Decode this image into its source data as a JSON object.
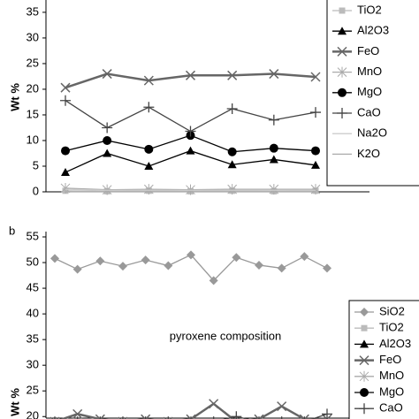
{
  "chart_data": [
    {
      "type": "line",
      "y_label": "Wt %",
      "categories": [
        null,
        null,
        null,
        null,
        null,
        null,
        null
      ],
      "ylim": [
        0,
        37.4
      ],
      "yticks": [
        0,
        5,
        10,
        15,
        20,
        25,
        30,
        35
      ],
      "series": [
        {
          "name": "TiO2",
          "color": "#bbbbbb",
          "marker": "square",
          "values": [
            0.2,
            0.1,
            0.2,
            0.1,
            0.2,
            0.1,
            0.2
          ]
        },
        {
          "name": "Al2O3",
          "color": "#000000",
          "marker": "triangle",
          "values": [
            3.8,
            7.5,
            5,
            8,
            5.3,
            6.3,
            5.2
          ]
        },
        {
          "name": "FeO",
          "color": "#666666",
          "marker": "x",
          "values": [
            20.3,
            23,
            21.7,
            22.7,
            22.7,
            23,
            22.4
          ]
        },
        {
          "name": "MnO",
          "color": "#aaaaaa",
          "marker": "asterisk",
          "values": [
            0.7,
            0.4,
            0.5,
            0.4,
            0.5,
            0.5,
            0.5
          ]
        },
        {
          "name": "MgO",
          "color": "#000000",
          "marker": "circle",
          "values": [
            8,
            10,
            8.3,
            11,
            7.8,
            8.5,
            8
          ]
        },
        {
          "name": "CaO",
          "color": "#444444",
          "marker": "plus",
          "values": [
            17.8,
            12.5,
            16.5,
            11.8,
            16.2,
            14,
            15.5
          ]
        },
        {
          "name": "Na2O",
          "color": "#cccccc",
          "marker": "none",
          "values": [
            0.5,
            0.3,
            0.3,
            0.3,
            0.3,
            0.3,
            0.3
          ]
        },
        {
          "name": "K2O",
          "color": "#aaaaaa",
          "marker": "none",
          "values": [
            0,
            0,
            0,
            0,
            0,
            0,
            0
          ]
        }
      ]
    },
    {
      "type": "line",
      "panel_label": "b",
      "y_label": "Wt %",
      "annotation": "pyroxene composition",
      "categories": [
        null,
        null,
        null,
        null,
        null,
        null,
        null,
        null,
        null,
        null,
        null,
        null,
        null
      ],
      "ylim": [
        19.7,
        55
      ],
      "yticks": [
        20,
        25,
        30,
        35,
        40,
        45,
        50,
        55
      ],
      "series": [
        {
          "name": "SiO2",
          "color": "#999999",
          "marker": "diamond",
          "values": [
            50.8,
            48.7,
            50.3,
            49.3,
            50.5,
            49.4,
            51.5,
            46.5,
            51,
            49.5,
            48.9,
            51.2,
            48.9
          ]
        },
        {
          "name": "TiO2",
          "color": "#bbbbbb",
          "marker": "square",
          "values": [
            null,
            null,
            null,
            null,
            null,
            null,
            null,
            null,
            null,
            null,
            null,
            null,
            null
          ]
        },
        {
          "name": "Al2O3",
          "color": "#000000",
          "marker": "triangle",
          "values": [
            null,
            null,
            null,
            null,
            null,
            null,
            null,
            null,
            null,
            null,
            null,
            null,
            null
          ]
        },
        {
          "name": "FeO",
          "color": "#666666",
          "marker": "x",
          "values": [
            19,
            20.5,
            19.5,
            19,
            19.5,
            19,
            19.5,
            22.5,
            19,
            19.5,
            22,
            19.5,
            19.5
          ]
        },
        {
          "name": "MnO",
          "color": "#aaaaaa",
          "marker": "asterisk",
          "values": [
            null,
            null,
            null,
            null,
            null,
            null,
            null,
            null,
            null,
            null,
            null,
            null,
            null
          ]
        },
        {
          "name": "MgO",
          "color": "#000000",
          "marker": "circle",
          "values": [
            null,
            null,
            null,
            null,
            null,
            null,
            null,
            null,
            null,
            null,
            null,
            null,
            null
          ]
        },
        {
          "name": "CaO",
          "color": "#444444",
          "marker": "plus",
          "values": [
            19,
            19,
            19,
            19,
            19,
            19,
            19,
            19,
            20,
            19,
            19,
            19,
            20.5
          ]
        }
      ]
    }
  ]
}
